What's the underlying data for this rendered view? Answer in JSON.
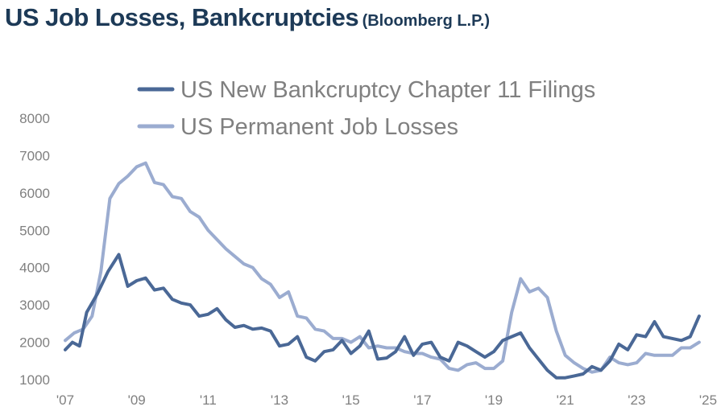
{
  "title": "US Job Losses, Bankcruptcies",
  "source": "(Bloomberg L.P.)",
  "colors": {
    "chapter11": "#4a6896",
    "job_losses": "#9bacd0",
    "axis_text": "#808080",
    "title": "#1d3a57"
  },
  "chart_data": {
    "type": "line",
    "title": "US Job Losses, Bankcruptcies (Bloomberg L.P.)",
    "xlabel": "",
    "ylabel": "",
    "xlim": [
      2007,
      2025
    ],
    "ylim": [
      1000,
      8000
    ],
    "yticks": [
      1000,
      2000,
      3000,
      4000,
      5000,
      6000,
      7000,
      8000
    ],
    "xticks": [
      {
        "value": 2007,
        "label": "'07"
      },
      {
        "value": 2009,
        "label": "'09"
      },
      {
        "value": 2011,
        "label": "'11"
      },
      {
        "value": 2013,
        "label": "'13"
      },
      {
        "value": 2015,
        "label": "'15"
      },
      {
        "value": 2017,
        "label": "'17"
      },
      {
        "value": 2019,
        "label": "'19"
      },
      {
        "value": 2021,
        "label": "'21"
      },
      {
        "value": 2023,
        "label": "'23"
      },
      {
        "value": 2025,
        "label": "'25"
      }
    ],
    "legend_position": "top",
    "series": [
      {
        "name": "US New Bankcruptcy Chapter 11 Filings",
        "color": "#4a6896",
        "points": [
          [
            2007.0,
            1800
          ],
          [
            2007.2,
            2000
          ],
          [
            2007.4,
            1900
          ],
          [
            2007.6,
            2800
          ],
          [
            2007.9,
            3300
          ],
          [
            2008.2,
            3900
          ],
          [
            2008.5,
            4350
          ],
          [
            2008.75,
            3500
          ],
          [
            2009.0,
            3650
          ],
          [
            2009.25,
            3720
          ],
          [
            2009.5,
            3400
          ],
          [
            2009.75,
            3450
          ],
          [
            2010.0,
            3150
          ],
          [
            2010.25,
            3050
          ],
          [
            2010.5,
            3000
          ],
          [
            2010.75,
            2700
          ],
          [
            2011.0,
            2750
          ],
          [
            2011.25,
            2900
          ],
          [
            2011.5,
            2600
          ],
          [
            2011.75,
            2400
          ],
          [
            2012.0,
            2450
          ],
          [
            2012.25,
            2350
          ],
          [
            2012.5,
            2380
          ],
          [
            2012.75,
            2300
          ],
          [
            2013.0,
            1900
          ],
          [
            2013.25,
            1950
          ],
          [
            2013.5,
            2150
          ],
          [
            2013.75,
            1600
          ],
          [
            2014.0,
            1500
          ],
          [
            2014.25,
            1750
          ],
          [
            2014.5,
            1800
          ],
          [
            2014.75,
            2050
          ],
          [
            2015.0,
            1700
          ],
          [
            2015.25,
            1900
          ],
          [
            2015.5,
            2300
          ],
          [
            2015.75,
            1550
          ],
          [
            2016.0,
            1580
          ],
          [
            2016.25,
            1750
          ],
          [
            2016.5,
            2150
          ],
          [
            2016.75,
            1650
          ],
          [
            2017.0,
            1950
          ],
          [
            2017.25,
            2000
          ],
          [
            2017.5,
            1600
          ],
          [
            2017.75,
            1500
          ],
          [
            2018.0,
            2000
          ],
          [
            2018.25,
            1900
          ],
          [
            2018.5,
            1750
          ],
          [
            2018.75,
            1600
          ],
          [
            2019.0,
            1750
          ],
          [
            2019.25,
            2050
          ],
          [
            2019.5,
            2150
          ],
          [
            2019.75,
            2250
          ],
          [
            2020.0,
            1850
          ],
          [
            2020.25,
            1550
          ],
          [
            2020.5,
            1250
          ],
          [
            2020.75,
            1050
          ],
          [
            2021.0,
            1050
          ],
          [
            2021.25,
            1100
          ],
          [
            2021.5,
            1150
          ],
          [
            2021.75,
            1350
          ],
          [
            2022.0,
            1250
          ],
          [
            2022.25,
            1500
          ],
          [
            2022.5,
            1950
          ],
          [
            2022.75,
            1800
          ],
          [
            2023.0,
            2200
          ],
          [
            2023.25,
            2150
          ],
          [
            2023.5,
            2550
          ],
          [
            2023.75,
            2150
          ],
          [
            2024.0,
            2100
          ],
          [
            2024.25,
            2050
          ],
          [
            2024.5,
            2150
          ],
          [
            2024.75,
            2700
          ]
        ]
      },
      {
        "name": "US Permanent Job Losses",
        "color": "#9bacd0",
        "points": [
          [
            2007.0,
            2050
          ],
          [
            2007.25,
            2250
          ],
          [
            2007.5,
            2350
          ],
          [
            2007.75,
            2700
          ],
          [
            2008.0,
            3900
          ],
          [
            2008.25,
            5850
          ],
          [
            2008.5,
            6250
          ],
          [
            2008.75,
            6450
          ],
          [
            2009.0,
            6700
          ],
          [
            2009.25,
            6800
          ],
          [
            2009.5,
            6280
          ],
          [
            2009.75,
            6220
          ],
          [
            2010.0,
            5900
          ],
          [
            2010.25,
            5850
          ],
          [
            2010.5,
            5500
          ],
          [
            2010.75,
            5350
          ],
          [
            2011.0,
            5000
          ],
          [
            2011.25,
            4750
          ],
          [
            2011.5,
            4500
          ],
          [
            2011.75,
            4300
          ],
          [
            2012.0,
            4100
          ],
          [
            2012.25,
            4000
          ],
          [
            2012.5,
            3700
          ],
          [
            2012.75,
            3550
          ],
          [
            2013.0,
            3200
          ],
          [
            2013.25,
            3350
          ],
          [
            2013.5,
            2700
          ],
          [
            2013.75,
            2650
          ],
          [
            2014.0,
            2350
          ],
          [
            2014.25,
            2300
          ],
          [
            2014.5,
            2100
          ],
          [
            2014.75,
            2100
          ],
          [
            2015.0,
            2000
          ],
          [
            2015.25,
            2150
          ],
          [
            2015.5,
            1850
          ],
          [
            2015.75,
            1900
          ],
          [
            2016.0,
            1850
          ],
          [
            2016.25,
            1850
          ],
          [
            2016.5,
            1750
          ],
          [
            2016.75,
            1700
          ],
          [
            2017.0,
            1700
          ],
          [
            2017.25,
            1600
          ],
          [
            2017.5,
            1550
          ],
          [
            2017.75,
            1300
          ],
          [
            2018.0,
            1250
          ],
          [
            2018.25,
            1400
          ],
          [
            2018.5,
            1450
          ],
          [
            2018.75,
            1300
          ],
          [
            2019.0,
            1300
          ],
          [
            2019.25,
            1500
          ],
          [
            2019.5,
            2800
          ],
          [
            2019.75,
            3700
          ],
          [
            2020.0,
            3350
          ],
          [
            2020.25,
            3450
          ],
          [
            2020.5,
            3200
          ],
          [
            2020.75,
            2300
          ],
          [
            2021.0,
            1650
          ],
          [
            2021.25,
            1450
          ],
          [
            2021.5,
            1300
          ],
          [
            2021.75,
            1200
          ],
          [
            2022.0,
            1250
          ],
          [
            2022.25,
            1600
          ],
          [
            2022.5,
            1450
          ],
          [
            2022.75,
            1400
          ],
          [
            2023.0,
            1450
          ],
          [
            2023.25,
            1700
          ],
          [
            2023.5,
            1650
          ],
          [
            2023.75,
            1650
          ],
          [
            2024.0,
            1650
          ],
          [
            2024.25,
            1850
          ],
          [
            2024.5,
            1850
          ],
          [
            2024.75,
            2000
          ]
        ]
      }
    ]
  }
}
